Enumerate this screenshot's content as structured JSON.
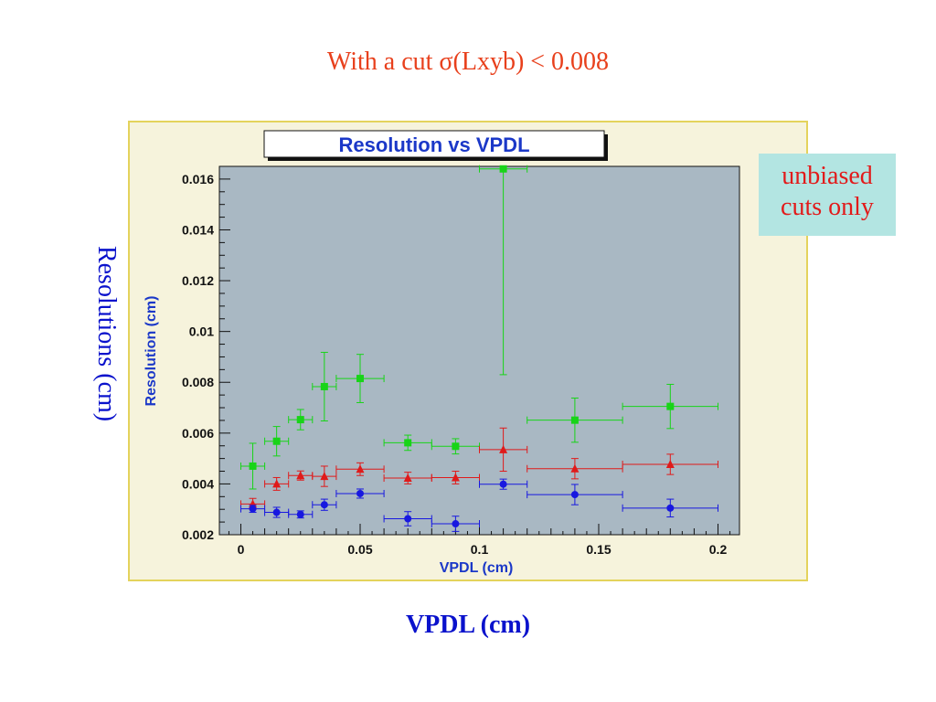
{
  "slide": {
    "title": "With a cut σ(Lxyb) < 0.008",
    "side_label": "Resolutions (cm)",
    "bottom_label": "VPDL (cm)",
    "callout": [
      "unbiased",
      "cuts only"
    ]
  },
  "chart_data": {
    "type": "scatter",
    "title": "Resolution vs VPDL",
    "xlabel": "VPDL (cm)",
    "ylabel": "Resolution (cm)",
    "xlim": [
      -0.009,
      0.209
    ],
    "ylim": [
      0.002,
      0.0165
    ],
    "x_ticks": [
      0,
      0.05,
      0.1,
      0.15,
      0.2
    ],
    "x_tick_labels": [
      "0",
      "0.05",
      "0.1",
      "0.15",
      "0.2"
    ],
    "y_ticks": [
      0.002,
      0.004,
      0.006,
      0.008,
      0.01,
      0.012,
      0.014,
      0.016
    ],
    "y_tick_labels": [
      "0.002",
      "0.004",
      "0.006",
      "0.008",
      "0.01",
      "0.012",
      "0.014",
      "0.016"
    ],
    "grid": false,
    "colors": {
      "frame_bg": "#f6f3dc",
      "frame_border": "#e4d35c",
      "plot_bg": "#a9b8c3",
      "title_color": "#1b38c8",
      "axis_label_color": "#1b38c8"
    },
    "series": [
      {
        "marker": "square",
        "color": "#18d418",
        "points": [
          {
            "x": 0.005,
            "xerr": 0.005,
            "y": 0.0047,
            "yerr": 0.0009
          },
          {
            "x": 0.015,
            "xerr": 0.005,
            "y": 0.00568,
            "yerr": 0.00058
          },
          {
            "x": 0.025,
            "xerr": 0.005,
            "y": 0.00653,
            "yerr": 0.0004
          },
          {
            "x": 0.035,
            "xerr": 0.005,
            "y": 0.00783,
            "yerr": 0.00135
          },
          {
            "x": 0.05,
            "xerr": 0.01,
            "y": 0.00815,
            "yerr": 0.00095
          },
          {
            "x": 0.07,
            "xerr": 0.01,
            "y": 0.00562,
            "yerr": 0.0003
          },
          {
            "x": 0.09,
            "xerr": 0.01,
            "y": 0.00548,
            "yerr": 0.0003
          },
          {
            "x": 0.11,
            "xerr": 0.01,
            "y": 0.0164,
            "yerr": 0.0081
          },
          {
            "x": 0.14,
            "xerr": 0.02,
            "y": 0.00651,
            "yerr": 0.00087
          },
          {
            "x": 0.18,
            "xerr": 0.02,
            "y": 0.00705,
            "yerr": 0.00087
          }
        ]
      },
      {
        "marker": "triangle",
        "color": "#e01a1a",
        "points": [
          {
            "x": 0.005,
            "xerr": 0.005,
            "y": 0.00321,
            "yerr": 0.00022
          },
          {
            "x": 0.015,
            "xerr": 0.005,
            "y": 0.004,
            "yerr": 0.00025
          },
          {
            "x": 0.025,
            "xerr": 0.005,
            "y": 0.00433,
            "yerr": 0.00018
          },
          {
            "x": 0.035,
            "xerr": 0.005,
            "y": 0.0043,
            "yerr": 0.0004
          },
          {
            "x": 0.05,
            "xerr": 0.01,
            "y": 0.00458,
            "yerr": 0.00025
          },
          {
            "x": 0.07,
            "xerr": 0.01,
            "y": 0.00423,
            "yerr": 0.00023
          },
          {
            "x": 0.09,
            "xerr": 0.01,
            "y": 0.00425,
            "yerr": 0.00025
          },
          {
            "x": 0.11,
            "xerr": 0.01,
            "y": 0.00535,
            "yerr": 0.00085
          },
          {
            "x": 0.14,
            "xerr": 0.02,
            "y": 0.0046,
            "yerr": 0.0004
          },
          {
            "x": 0.18,
            "xerr": 0.02,
            "y": 0.00477,
            "yerr": 0.0004
          }
        ]
      },
      {
        "marker": "circle",
        "color": "#1818e0",
        "points": [
          {
            "x": 0.005,
            "xerr": 0.005,
            "y": 0.00302,
            "yerr": 0.00014
          },
          {
            "x": 0.015,
            "xerr": 0.005,
            "y": 0.00288,
            "yerr": 0.0002
          },
          {
            "x": 0.025,
            "xerr": 0.005,
            "y": 0.0028,
            "yerr": 0.00014
          },
          {
            "x": 0.035,
            "xerr": 0.005,
            "y": 0.00318,
            "yerr": 0.00022
          },
          {
            "x": 0.05,
            "xerr": 0.01,
            "y": 0.00362,
            "yerr": 0.00018
          },
          {
            "x": 0.07,
            "xerr": 0.01,
            "y": 0.00263,
            "yerr": 0.00028
          },
          {
            "x": 0.09,
            "xerr": 0.01,
            "y": 0.00243,
            "yerr": 0.0003
          },
          {
            "x": 0.11,
            "xerr": 0.01,
            "y": 0.00399,
            "yerr": 0.0002
          },
          {
            "x": 0.14,
            "xerr": 0.02,
            "y": 0.00358,
            "yerr": 0.0004
          },
          {
            "x": 0.18,
            "xerr": 0.02,
            "y": 0.00305,
            "yerr": 0.00035
          }
        ]
      }
    ]
  }
}
